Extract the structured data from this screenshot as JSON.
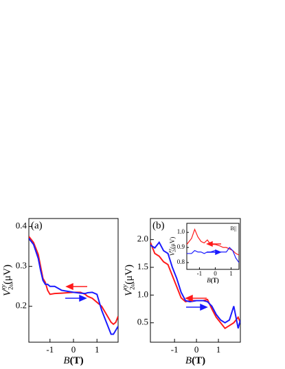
{
  "chart_data": [
    {
      "type": "line",
      "panel_label": "(a)",
      "xlabel": {
        "main": "B",
        "unit": "(T)"
      },
      "ylabel": {
        "main": "V",
        "sub": "2ω",
        "sup": "xy",
        "unit": "(μV)"
      },
      "xlim": [
        -1.9,
        1.9
      ],
      "ylim": [
        0.11,
        0.42
      ],
      "xticks": [
        -1,
        0,
        1
      ],
      "yticks": [
        0.2,
        0.3,
        0.4
      ],
      "x": [
        -1.9,
        -1.7,
        -1.5,
        -1.4,
        -1.3,
        -1.2,
        -1.1,
        -1.0,
        -0.8,
        -0.5,
        0,
        0.3,
        0.5,
        0.6,
        0.8,
        1.0,
        1.1,
        1.2,
        1.4,
        1.6,
        1.7,
        1.8,
        1.9
      ],
      "series": [
        {
          "color": "#ff1a1a",
          "values": [
            0.375,
            0.36,
            0.33,
            0.3,
            0.27,
            0.26,
            0.24,
            0.23,
            0.232,
            0.233,
            0.235,
            0.235,
            0.23,
            0.225,
            0.22,
            0.21,
            0.205,
            0.2,
            0.18,
            0.16,
            0.155,
            0.16,
            0.175
          ]
        },
        {
          "color": "#1a1aff",
          "values": [
            0.37,
            0.355,
            0.32,
            0.29,
            0.265,
            0.255,
            0.255,
            0.25,
            0.25,
            0.24,
            0.235,
            0.233,
            0.232,
            0.234,
            0.235,
            0.23,
            0.21,
            0.19,
            0.16,
            0.13,
            0.13,
            0.14,
            0.15
          ]
        }
      ]
    },
    {
      "type": "line",
      "panel_label": "(b)",
      "xlabel": {
        "main": "B",
        "unit": "(T)"
      },
      "ylabel": {
        "main": "V",
        "sub": "2ω",
        "sup": "xy",
        "unit": "(μV)"
      },
      "xlim": [
        -2.1,
        2.0
      ],
      "ylim": [
        0.15,
        2.38
      ],
      "xticks": [
        -1,
        0,
        1
      ],
      "yticks": [
        0.5,
        {
          "value": 1,
          "label": "1.0"
        },
        1.5,
        {
          "value": 2,
          "label": "2.0"
        }
      ],
      "x": [
        -2.1,
        -1.9,
        -1.7,
        -1.5,
        -1.3,
        -1.1,
        -0.9,
        -0.7,
        -0.5,
        -0.3,
        0,
        0.3,
        0.5,
        0.7,
        0.9,
        1.1,
        1.3,
        1.5,
        1.7,
        1.9,
        2.0
      ],
      "series": [
        {
          "color": "#ff1a1a",
          "values": [
            1.95,
            1.75,
            1.7,
            1.6,
            1.55,
            1.35,
            1.15,
            0.95,
            0.88,
            0.9,
            0.9,
            0.9,
            0.92,
            0.75,
            0.6,
            0.5,
            0.4,
            0.45,
            0.5,
            0.6,
            0.5
          ]
        },
        {
          "color": "#1a1aff",
          "values": [
            1.9,
            1.85,
            1.95,
            1.8,
            1.75,
            1.5,
            1.3,
            1.05,
            0.9,
            0.88,
            0.9,
            0.9,
            0.88,
            0.8,
            0.65,
            0.55,
            0.5,
            0.55,
            0.8,
            0.4,
            0.55
          ]
        }
      ]
    },
    {
      "type": "line",
      "annotation": "B||",
      "xlabel": {
        "main": "B",
        "unit": "(T)"
      },
      "ylabel": {
        "main": "V",
        "sub": "2ω",
        "sup": "xy",
        "unit": "(μV)"
      },
      "xlim": [
        -1.8,
        1.5
      ],
      "ylim": [
        0.755,
        1.06
      ],
      "xticks": [
        -1,
        0,
        1
      ],
      "yticks": [
        0.8,
        0.9,
        {
          "value": 1,
          "label": "1.0"
        }
      ],
      "x": [
        -1.8,
        -1.5,
        -1.3,
        -1.1,
        -0.9,
        -0.7,
        -0.5,
        -0.3,
        0,
        0.3,
        0.5,
        0.7,
        0.9,
        1.1,
        1.3,
        1.5
      ],
      "series": [
        {
          "color": "#ff1a1a",
          "values": [
            0.92,
            0.96,
            1.02,
            0.97,
            0.94,
            0.93,
            0.95,
            0.92,
            0.92,
            0.91,
            0.9,
            0.9,
            0.89,
            0.88,
            0.86,
            0.85
          ]
        },
        {
          "color": "#1a1aff",
          "values": [
            0.86,
            0.86,
            0.88,
            0.87,
            0.87,
            0.86,
            0.87,
            0.87,
            0.88,
            0.87,
            0.87,
            0.87,
            0.9,
            0.88,
            0.83,
            0.8
          ]
        }
      ]
    }
  ]
}
